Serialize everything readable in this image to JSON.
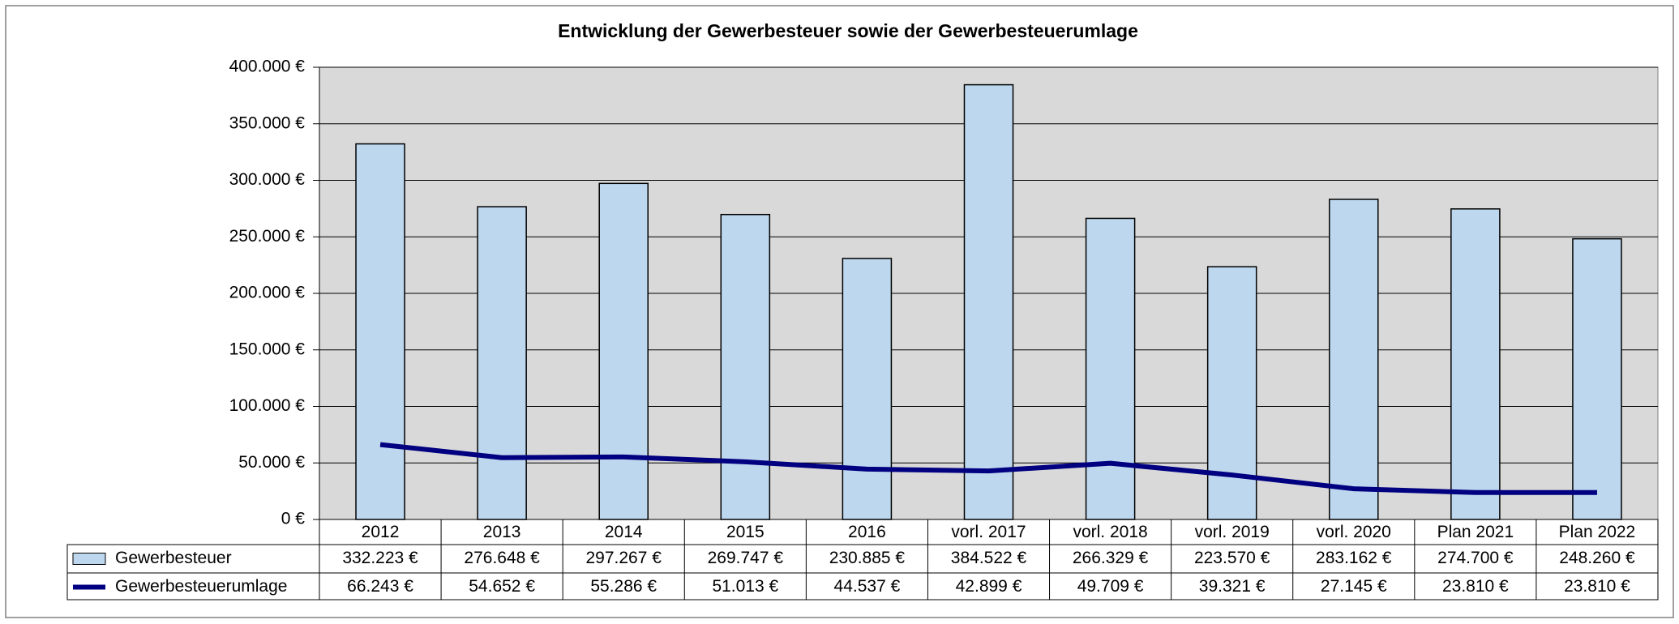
{
  "chart_data": {
    "type": "bar",
    "title": "Entwicklung der Gewerbesteuer sowie der Gewerbesteuerumlage",
    "categories": [
      "2012",
      "2013",
      "2014",
      "2015",
      "2016",
      "vorl. 2017",
      "vorl. 2018",
      "vorl. 2019",
      "vorl. 2020",
      "Plan 2021",
      "Plan 2022"
    ],
    "series": [
      {
        "name": "Gewerbesteuer",
        "type": "bar",
        "color": "#bdd7ee",
        "values": [
          332223,
          276648,
          297267,
          269747,
          230885,
          384522,
          266329,
          223570,
          283162,
          274700,
          248260
        ],
        "value_labels": [
          "332.223 €",
          "276.648 €",
          "297.267 €",
          "269.747 €",
          "230.885 €",
          "384.522 €",
          "266.329 €",
          "223.570 €",
          "283.162 €",
          "274.700 €",
          "248.260 €"
        ]
      },
      {
        "name": "Gewerbesteuerumlage",
        "type": "line",
        "color": "#000080",
        "values": [
          66243,
          54652,
          55286,
          51013,
          44537,
          42899,
          49709,
          39321,
          27145,
          23810,
          23810
        ],
        "value_labels": [
          "66.243 €",
          "54.652 €",
          "55.286 €",
          "51.013 €",
          "44.537 €",
          "42.899 €",
          "49.709 €",
          "39.321 €",
          "27.145 €",
          "23.810 €",
          "23.810 €"
        ]
      }
    ],
    "ylim": [
      0,
      400000
    ],
    "yticks": [
      {
        "value": 0,
        "label": "0 €"
      },
      {
        "value": 50000,
        "label": "50.000 €"
      },
      {
        "value": 100000,
        "label": "100.000 €"
      },
      {
        "value": 150000,
        "label": "150.000 €"
      },
      {
        "value": 200000,
        "label": "200.000 €"
      },
      {
        "value": 250000,
        "label": "250.000 €"
      },
      {
        "value": 300000,
        "label": "300.000 €"
      },
      {
        "value": 350000,
        "label": "350.000 €"
      },
      {
        "value": 400000,
        "label": "400.000 €"
      }
    ],
    "grid": true,
    "plot_background": "#d9d9d9"
  }
}
